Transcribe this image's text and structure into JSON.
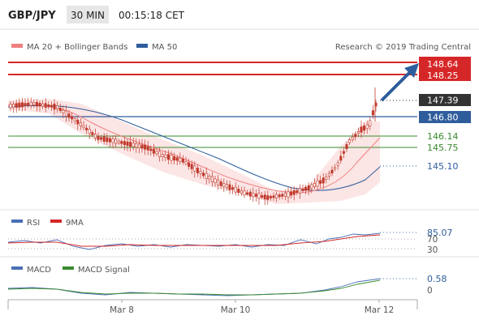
{
  "header": {
    "symbol": "GBP/JPY",
    "timeframe": "30 MIN",
    "time": "00:15:18 CET"
  },
  "main_panel": {
    "legend": {
      "ma20_bb": "MA 20 + Bollinger Bands",
      "ma50": "MA 50",
      "ma20_color": "#f08080",
      "ma50_color": "#2f5d9c"
    },
    "copyright": "Research © 2019 Trading Central",
    "price_labels": [
      {
        "value": "148.64",
        "style": "red"
      },
      {
        "value": "148.25",
        "style": "red"
      },
      {
        "value": "147.39",
        "style": "dark"
      },
      {
        "value": "146.80",
        "style": "blue"
      },
      {
        "value": "146.14",
        "style": "green-text"
      },
      {
        "value": "145.75",
        "style": "green-text"
      },
      {
        "value": "145.10",
        "style": "blue-text"
      }
    ]
  },
  "rsi_panel": {
    "legend_rsi": "RSI",
    "legend_9ma": "9MA",
    "value_label": "85.07",
    "level_70": "70",
    "level_30": "30"
  },
  "macd_panel": {
    "legend_macd": "MACD",
    "legend_signal": "MACD Signal",
    "value_label": "0.58",
    "zero_label": "0"
  },
  "x_axis": [
    "Mar 8",
    "Mar 10",
    "Mar 12"
  ],
  "colors": {
    "red": "#d62728",
    "blue": "#2f5d9c",
    "green": "#3a8a2e",
    "dark": "#333333",
    "candle": "#c0392b",
    "band_fill": "#fbe0e0"
  }
}
